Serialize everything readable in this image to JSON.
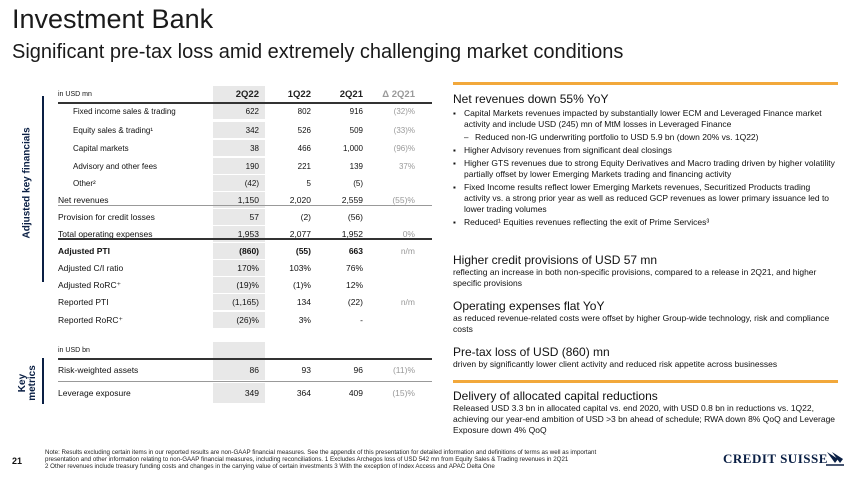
{
  "header": {
    "title": "Investment Bank",
    "subtitle": "Significant pre-tax loss amid extremely challenging market conditions"
  },
  "side_labels": {
    "financials": "Adjusted key financials",
    "metrics": "Key metrics"
  },
  "table1": {
    "unit": "in USD mn",
    "columns": [
      "2Q22",
      "1Q22",
      "2Q21",
      "Δ 2Q21"
    ],
    "rows": [
      {
        "label": "Fixed income sales & trading",
        "v": [
          "622",
          "802",
          "916",
          "(32)%"
        ],
        "style": "indent"
      },
      {
        "label": "Equity sales & trading¹",
        "v": [
          "342",
          "526",
          "509",
          "(33)%"
        ],
        "style": "indent"
      },
      {
        "label": "Capital markets",
        "v": [
          "38",
          "466",
          "1,000",
          "(96)%"
        ],
        "style": "indent"
      },
      {
        "label": "Advisory and other fees",
        "v": [
          "190",
          "221",
          "139",
          "37%"
        ],
        "style": "indent"
      },
      {
        "label": "Other²",
        "v": [
          "(42)",
          "5",
          "(5)",
          ""
        ],
        "style": "indent"
      },
      {
        "label": "Net revenues",
        "v": [
          "1,150",
          "2,020",
          "2,559",
          "(55)%"
        ],
        "style": "norm"
      },
      {
        "label": "Provision for credit losses",
        "v": [
          "57",
          "(2)",
          "(56)",
          ""
        ],
        "style": "norm"
      },
      {
        "label": "Total operating expenses",
        "v": [
          "1,953",
          "2,077",
          "1,952",
          "0%"
        ],
        "style": "norm"
      },
      {
        "label": "Adjusted PTI",
        "v": [
          "(860)",
          "(55)",
          "663",
          "n/m"
        ],
        "style": "bold"
      },
      {
        "label": "Adjusted C/I ratio",
        "v": [
          "170%",
          "103%",
          "76%",
          ""
        ],
        "style": "norm"
      },
      {
        "label": "Adjusted RoRC⁺",
        "v": [
          "(19)%",
          "(1)%",
          "12%",
          ""
        ],
        "style": "norm"
      },
      {
        "label": "Reported PTI",
        "v": [
          "(1,165)",
          "134",
          "(22)",
          "n/m"
        ],
        "style": "norm"
      },
      {
        "label": "Reported RoRC⁺",
        "v": [
          "(26)%",
          "3%",
          "-",
          ""
        ],
        "style": "norm"
      }
    ]
  },
  "table2": {
    "unit": "in USD bn",
    "rows": [
      {
        "label": "Risk-weighted assets",
        "v": [
          "86",
          "93",
          "96",
          "(11)%"
        ]
      },
      {
        "label": "Leverage exposure",
        "v": [
          "349",
          "364",
          "409",
          "(15)%"
        ]
      }
    ]
  },
  "right": {
    "s1_title": "Net revenues down 55% YoY",
    "s1_b1": "Capital Markets revenues impacted by substantially lower ECM and Leveraged Finance market activity and include USD (245) mn of MtM losses in Leveraged Finance",
    "s1_b1a": "Reduced non-IG underwriting portfolio to USD 5.9 bn (down 20% vs. 1Q22)",
    "s1_b2": "Higher Advisory revenues from significant deal closings",
    "s1_b3": "Higher GTS revenues due to strong Equity Derivatives and Macro trading driven by higher volatility partially offset by lower Emerging Markets trading and financing activity",
    "s1_b4": "Fixed Income results reflect lower Emerging Markets revenues, Securitized Products trading activity vs. a strong prior year as well as reduced GCP revenues as lower primary issuance led to lower trading volumes",
    "s1_b5": "Reduced¹ Equities revenues reflecting the exit of Prime Services³",
    "s2_title": "Higher credit provisions of USD 57 mn",
    "s2_text": "reflecting an increase in both non-specific provisions, compared to a release in 2Q21, and higher specific provisions",
    "s3_title": "Operating expenses flat YoY",
    "s3_text": "as reduced revenue-related costs were offset by higher Group-wide technology, risk and compliance costs",
    "s4_title": "Pre-tax loss of USD (860) mn",
    "s4_text": "driven by significantly lower client activity and reduced risk appetite across businesses",
    "s5_title": "Delivery of allocated capital reductions",
    "s5_text": "Released USD 3.3 bn in allocated capital vs. end 2020, with USD 0.8 bn in reductions vs. 1Q22, achieving our year-end ambition of USD >3 bn ahead of schedule; RWA down 8% QoQ and Leverage Exposure down 4% QoQ"
  },
  "footer": {
    "page": "21",
    "note1": "Note: Results excluding certain items in our reported results are non-GAAP financial measures. See the appendix of this presentation for detailed information and definitions of terms as well as important",
    "note2": "presentation and other information relating to non-GAAP financial measures, including reconciliations.   1 Excludes Archegos loss of USD 542 mn from Equity Sales & Trading revenues in 2Q21",
    "note3": "2 Other revenues include treasury funding costs and changes in the carrying value of certain investments    3 With the exception of Index Access and APAC Delta One",
    "logo": "CREDIT SUISSE"
  },
  "colors": {
    "accent": "#f2a83b",
    "navy": "#0a1f44",
    "highlight": "#e8e8e8"
  }
}
